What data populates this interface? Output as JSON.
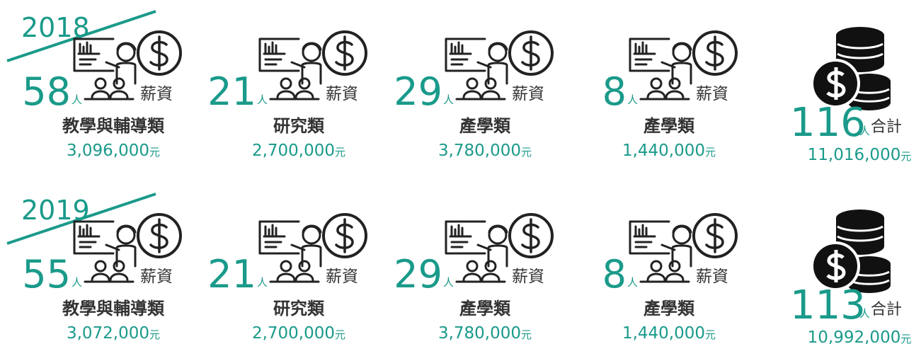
{
  "rows": [
    {
      "year": "2018",
      "items": [
        {
          "count": "58",
          "unit": "人",
          "label": "薪資",
          "category": "教學與輔導類",
          "amount": "3,096,000",
          "currency": "元"
        },
        {
          "count": "21",
          "unit": "人",
          "label": "薪資",
          "category": "研究類",
          "amount": "2,700,000",
          "currency": "元"
        },
        {
          "count": "29",
          "unit": "人",
          "label": "薪資",
          "category": "產學類",
          "amount": "3,780,000",
          "currency": "元"
        },
        {
          "count": "8",
          "unit": "人",
          "label": "薪資",
          "category": "產學類",
          "amount": "1,440,000",
          "currency": "元"
        }
      ],
      "total": {
        "count": "116",
        "unit": "人",
        "label": "合計",
        "amount": "11,016,000",
        "currency": "元"
      }
    },
    {
      "year": "2019",
      "items": [
        {
          "count": "55",
          "unit": "人",
          "label": "薪資",
          "category": "教學與輔導類",
          "amount": "3,072,000",
          "currency": "元"
        },
        {
          "count": "21",
          "unit": "人",
          "label": "薪資",
          "category": "研究類",
          "amount": "2,700,000",
          "currency": "元"
        },
        {
          "count": "29",
          "unit": "人",
          "label": "薪資",
          "category": "產學類",
          "amount": "3,780,000",
          "currency": "元"
        },
        {
          "count": "8",
          "unit": "人",
          "label": "薪資",
          "category": "產學類",
          "amount": "1,440,000",
          "currency": "元"
        }
      ],
      "total": {
        "count": "113",
        "unit": "人",
        "label": "合計",
        "amount": "10,992,000",
        "currency": "元"
      }
    }
  ]
}
